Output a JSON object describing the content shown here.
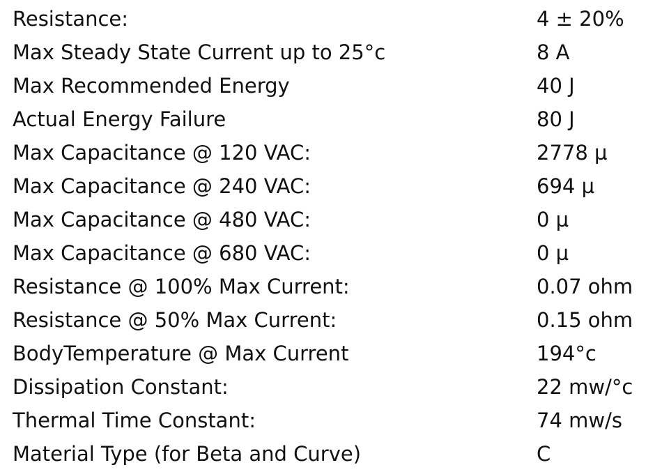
{
  "table": {
    "rows": [
      [
        "Resistance:",
        "4 ± 20%"
      ],
      [
        "Max Steady State Current up to 25°c",
        "8 A"
      ],
      [
        "Max Recommended Energy",
        "40 J"
      ],
      [
        "Actual Energy Failure",
        "80 J"
      ],
      [
        "Max Capacitance @ 120 VAC:",
        "2778 µ"
      ],
      [
        "Max Capacitance @ 240 VAC:",
        "694 µ"
      ],
      [
        "Max Capacitance @ 480 VAC:",
        "0 µ"
      ],
      [
        "Max Capacitance @ 680 VAC:",
        "0 µ"
      ],
      [
        "Resistance @ 100% Max Current:",
        "0.07 ohm"
      ],
      [
        "Resistance @ 50% Max Current:",
        "0.15 ohm"
      ],
      [
        "BodyTemperature @ Max Current",
        "194°c"
      ],
      [
        "Dissipation Constant:",
        "22 mw/°c"
      ],
      [
        "Thermal Time Constant:",
        "74 mw/s"
      ],
      [
        "Material Type (for Beta and Curve)",
        "C"
      ]
    ]
  }
}
